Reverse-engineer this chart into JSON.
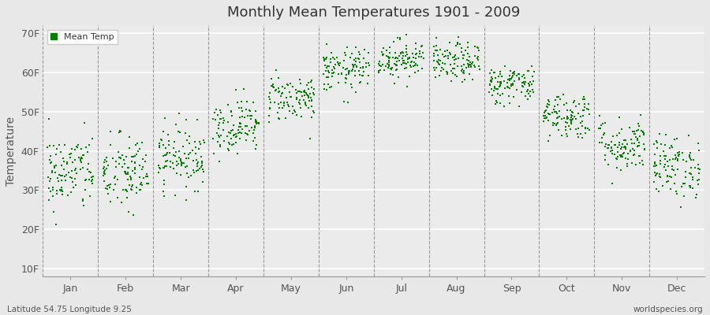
{
  "title": "Monthly Mean Temperatures 1901 - 2009",
  "ylabel": "Temperature",
  "xlabel_months": [
    "Jan",
    "Feb",
    "Mar",
    "Apr",
    "May",
    "Jun",
    "Jul",
    "Aug",
    "Sep",
    "Oct",
    "Nov",
    "Dec"
  ],
  "ytick_labels": [
    "10F",
    "20F",
    "30F",
    "40F",
    "50F",
    "60F",
    "70F"
  ],
  "ytick_values": [
    10,
    20,
    30,
    40,
    50,
    60,
    70
  ],
  "ylim": [
    8,
    72
  ],
  "dot_color": "#008000",
  "background_color": "#e8e8e8",
  "plot_bg_color": "#ebebeb",
  "grid_color": "#ffffff",
  "dashed_line_color": "#777777",
  "legend_label": "Mean Temp",
  "footer_left": "Latitude 54.75 Longitude 9.25",
  "footer_right": "worldspecies.org",
  "n_years": 109,
  "monthly_means_f": [
    34.5,
    34.2,
    38.5,
    46.5,
    53.5,
    60.5,
    63.5,
    62.5,
    57.0,
    49.0,
    41.5,
    36.0
  ],
  "monthly_stds_f": [
    5.0,
    5.0,
    4.0,
    3.5,
    3.0,
    2.8,
    2.5,
    2.5,
    2.5,
    3.0,
    3.5,
    4.0
  ],
  "random_seed": 42
}
